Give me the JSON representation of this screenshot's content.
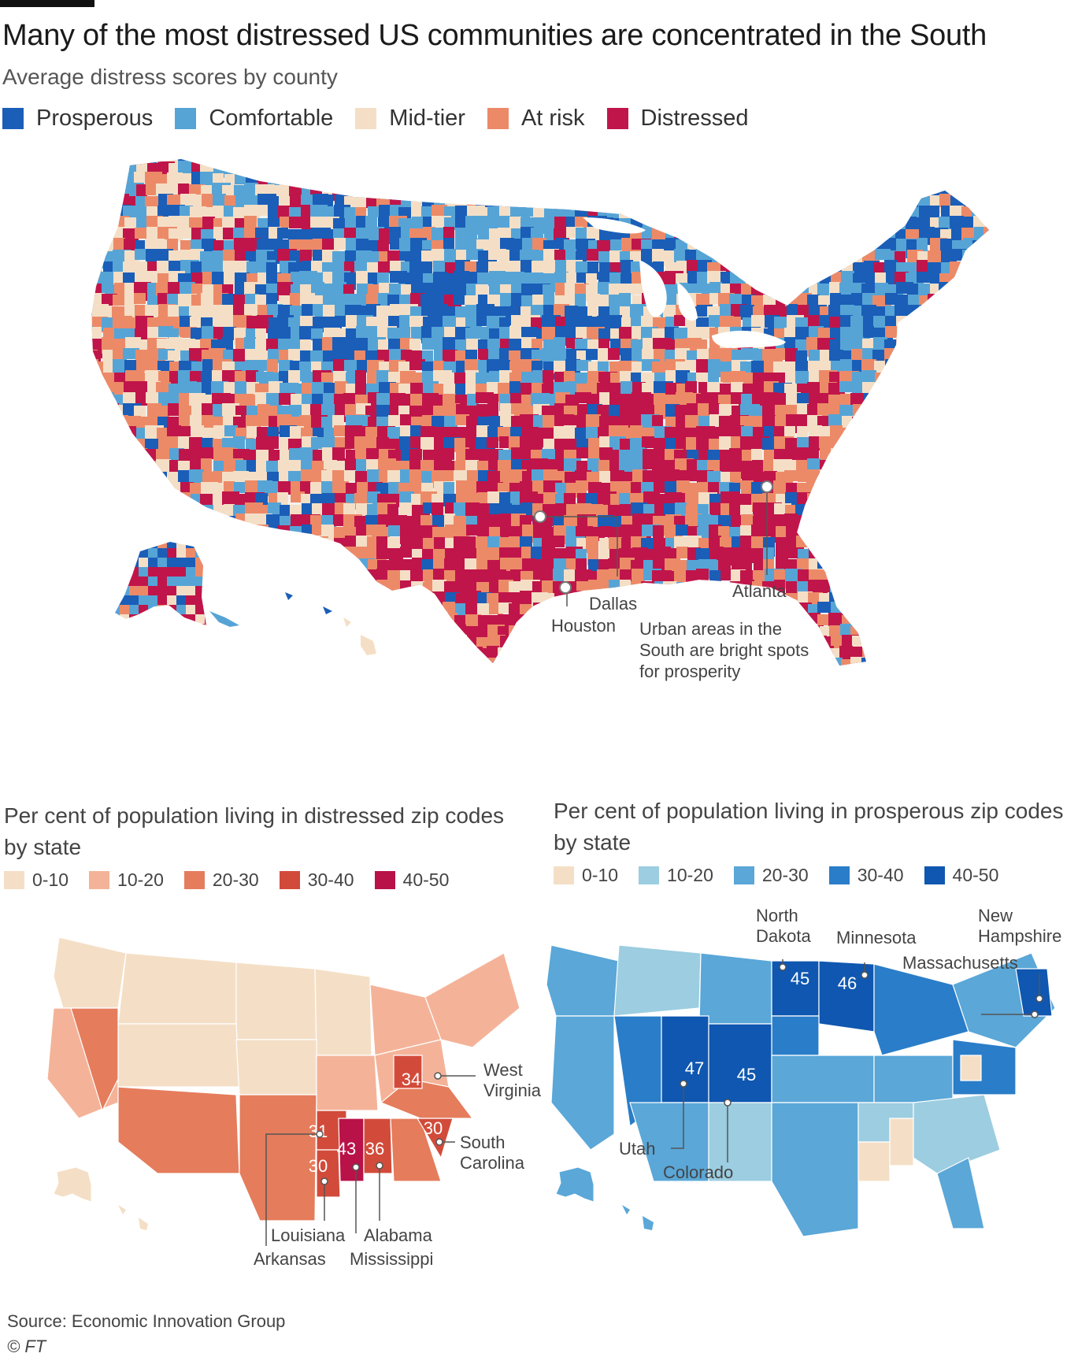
{
  "header": {
    "title": "Many of the most distressed US communities are concentrated in the South",
    "subtitle": "Average distress scores by county"
  },
  "main_legend": [
    {
      "label": "Prosperous",
      "color": "#1a5eb8"
    },
    {
      "label": "Comfortable",
      "color": "#56a4d6"
    },
    {
      "label": "Mid-tier",
      "color": "#f4dfc6"
    },
    {
      "label": "At risk",
      "color": "#ec8a68"
    },
    {
      "label": "Distressed",
      "color": "#c0154a"
    }
  ],
  "main_map": {
    "cities": [
      {
        "name": "Dallas"
      },
      {
        "name": "Houston"
      },
      {
        "name": "Atlanta"
      }
    ],
    "annotation": [
      "Urban areas in the",
      "South are bright spots",
      "for prosperity"
    ]
  },
  "distressed_panel": {
    "title": "Per cent of population living in distressed zip codes by state",
    "legend": [
      {
        "label": "0-10",
        "color": "#f4dfc6"
      },
      {
        "label": "10-20",
        "color": "#f4b399"
      },
      {
        "label": "20-30",
        "color": "#e57c5c"
      },
      {
        "label": "30-40",
        "color": "#d24b3a"
      },
      {
        "label": "40-50",
        "color": "#b81248"
      }
    ],
    "states": [
      {
        "name": "West Virginia",
        "value": "34"
      },
      {
        "name": "Arkansas",
        "value": "31"
      },
      {
        "name": "South Carolina",
        "value": "30"
      },
      {
        "name": "Louisiana",
        "value": "30"
      },
      {
        "name": "Mississippi",
        "value": "43"
      },
      {
        "name": "Alabama",
        "value": "36"
      }
    ]
  },
  "prosperous_panel": {
    "title": "Per cent of population living in prosperous zip codes by state",
    "legend": [
      {
        "label": "0-10",
        "color": "#f4dfc6"
      },
      {
        "label": "10-20",
        "color": "#9ccde0"
      },
      {
        "label": "20-30",
        "color": "#5aa7d8"
      },
      {
        "label": "30-40",
        "color": "#2a7dc8"
      },
      {
        "label": "40-50",
        "color": "#0f57b0"
      }
    ],
    "states": [
      {
        "name": "North Dakota",
        "value": "45"
      },
      {
        "name": "Minnesota",
        "value": "46"
      },
      {
        "name": "Utah",
        "value": "47"
      },
      {
        "name": "Colorado",
        "value": "45"
      },
      {
        "name": "New Hampshire"
      },
      {
        "name": "Massachusetts"
      }
    ]
  },
  "footer": {
    "source": "Source: Economic Innovation Group",
    "credit": "© FT"
  }
}
